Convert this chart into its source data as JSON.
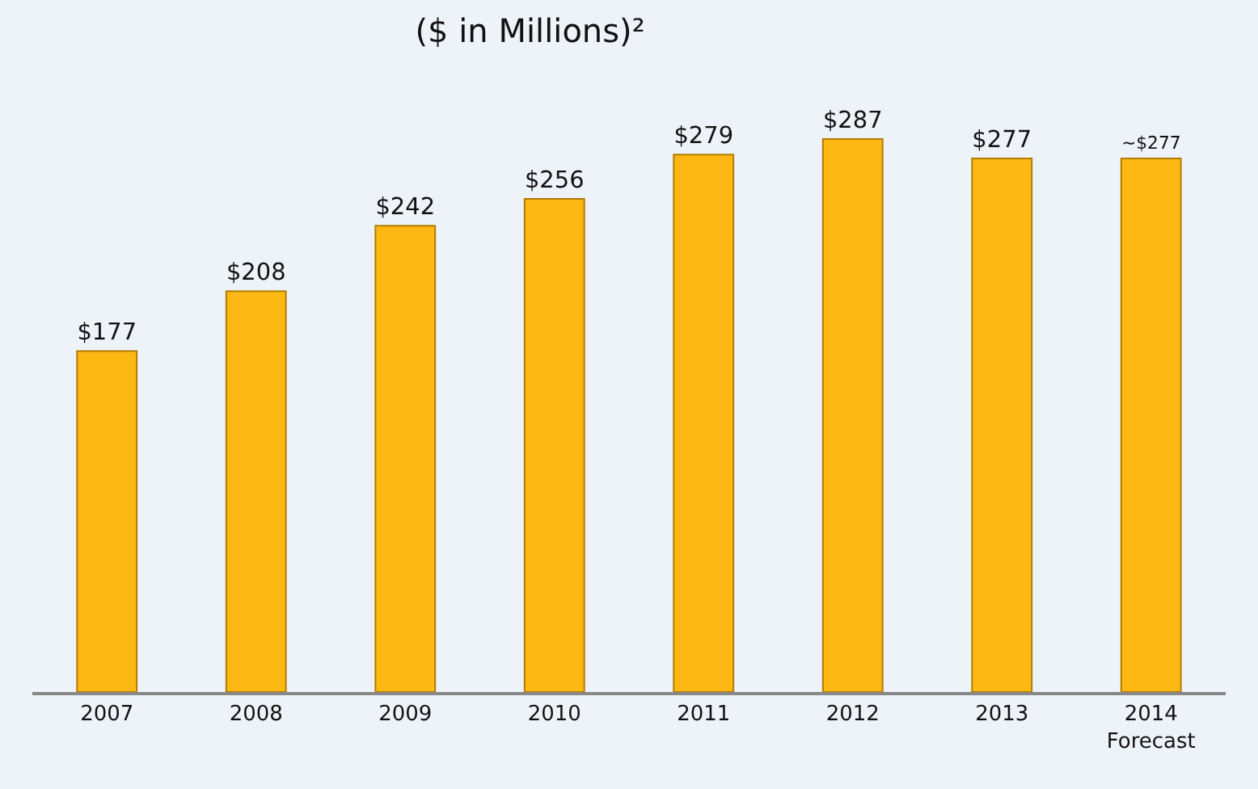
{
  "chart_data": {
    "type": "bar",
    "title": "($ in Millions)²",
    "categories": [
      "2007",
      "2008",
      "2009",
      "2010",
      "2011",
      "2012",
      "2013",
      "2014\nForecast"
    ],
    "values": [
      177,
      208,
      242,
      256,
      279,
      287,
      277,
      277
    ],
    "value_labels": [
      "$177",
      "$208",
      "$242",
      "$256",
      "$279",
      "$287",
      "$277",
      "~$277"
    ],
    "color": "#fdb813",
    "grid": false,
    "legend": false
  }
}
